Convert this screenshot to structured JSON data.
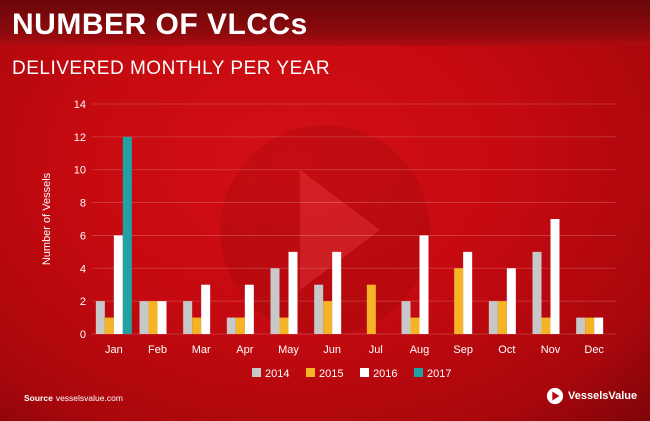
{
  "header": {
    "title": "NUMBER OF VLCCs",
    "subtitle": "DELIVERED MONTHLY PER YEAR"
  },
  "footer": {
    "source_label": "Source",
    "source_text": "vesselsvalue.com",
    "brand_name": "VesselsValue"
  },
  "chart_data": {
    "type": "bar",
    "title": "NUMBER OF VLCCs",
    "subtitle": "DELIVERED MONTHLY PER YEAR",
    "xlabel": "",
    "ylabel": "Number of Vessels",
    "ylim": [
      0,
      14
    ],
    "yticks": [
      0,
      2,
      4,
      6,
      8,
      10,
      12,
      14
    ],
    "grid": true,
    "legend_position": "bottom",
    "categories": [
      "Jan",
      "Feb",
      "Mar",
      "Apr",
      "May",
      "Jun",
      "Jul",
      "Aug",
      "Sep",
      "Oct",
      "Nov",
      "Dec"
    ],
    "series": [
      {
        "name": "2014",
        "color": "#c8c8c8",
        "values": [
          2,
          2,
          2,
          1,
          4,
          3,
          0,
          2,
          0,
          2,
          5,
          1
        ]
      },
      {
        "name": "2015",
        "color": "#f5b426",
        "values": [
          1,
          2,
          1,
          1,
          1,
          2,
          3,
          1,
          4,
          2,
          1,
          1
        ]
      },
      {
        "name": "2016",
        "color": "#ffffff",
        "values": [
          6,
          2,
          3,
          3,
          5,
          5,
          0,
          6,
          5,
          4,
          7,
          1
        ]
      },
      {
        "name": "2017",
        "color": "#1fa3a3",
        "values": [
          12,
          0,
          0,
          0,
          0,
          0,
          0,
          0,
          0,
          0,
          0,
          0
        ]
      }
    ]
  }
}
